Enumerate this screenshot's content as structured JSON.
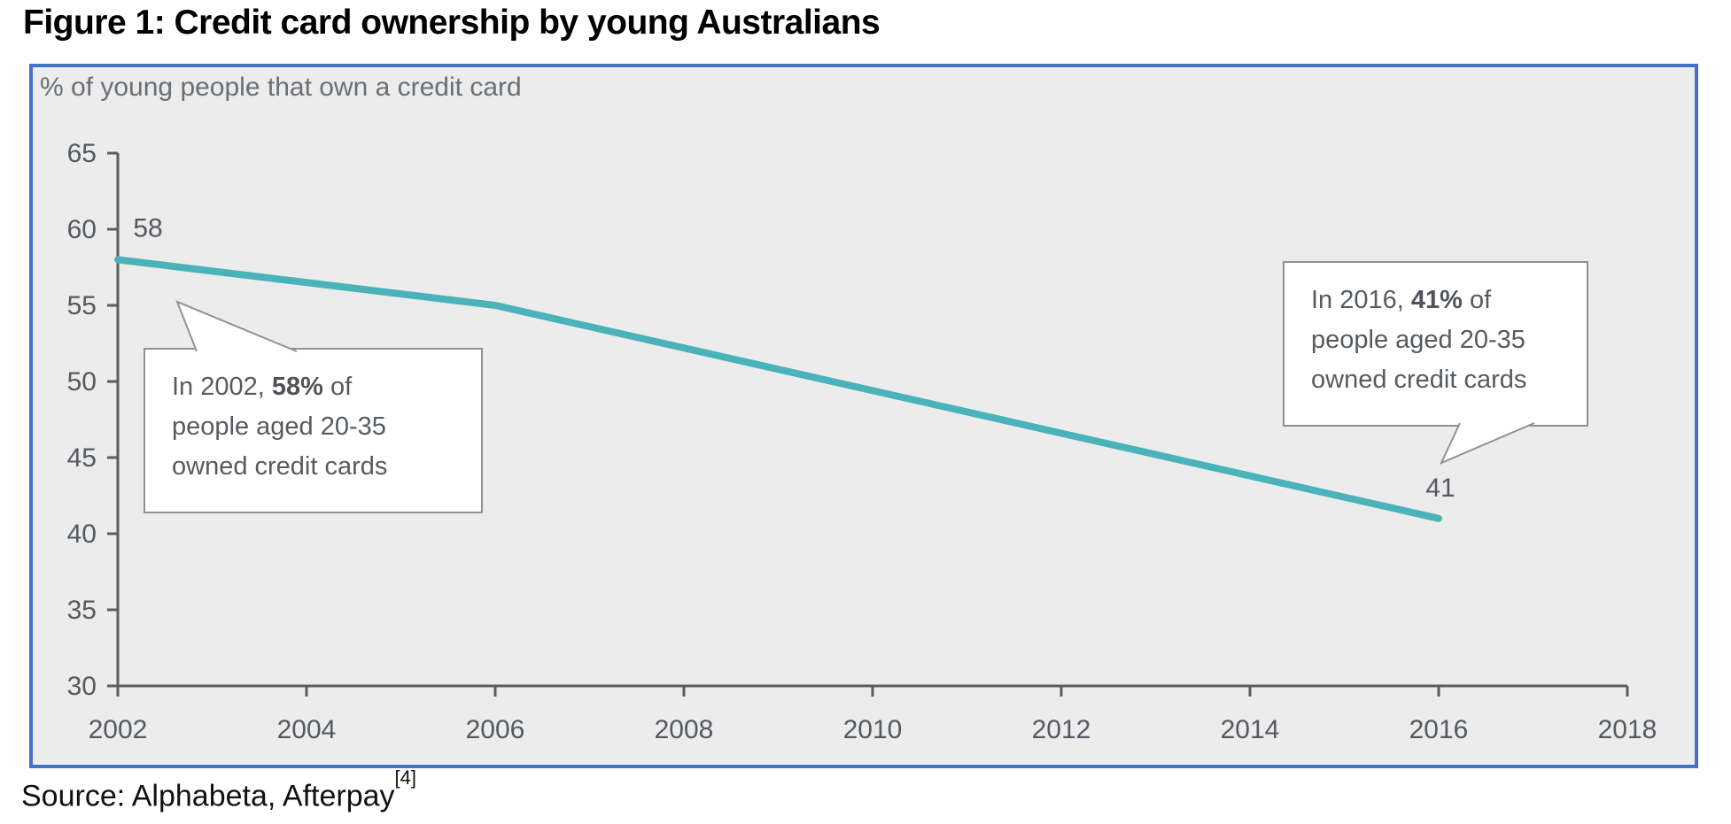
{
  "page": {
    "title": "Figure 1: Credit card ownership by young Australians",
    "source_prefix": "Source: Alphabeta, Afterpay",
    "source_ref": "[4]"
  },
  "chart_data": {
    "type": "line",
    "title": "Figure 1: Credit card ownership by young Australians",
    "subtitle": "% of young people that own a credit card",
    "x": [
      2002,
      2006,
      2016
    ],
    "values": [
      58,
      55,
      41
    ],
    "data_labels": [
      {
        "x": 2002,
        "y": 58,
        "text": "58"
      },
      {
        "x": 2016,
        "y": 41,
        "text": "41"
      }
    ],
    "xlim": [
      2002,
      2018
    ],
    "ylim": [
      30,
      65
    ],
    "x_ticks": [
      2002,
      2004,
      2006,
      2008,
      2010,
      2012,
      2014,
      2016,
      2018
    ],
    "y_ticks": [
      30,
      35,
      40,
      45,
      50,
      55,
      60,
      65
    ],
    "grid": false,
    "legend": "none",
    "line_color": "#4ab3b9",
    "axis_color": "#595d61",
    "tick_label_color": "#54595f",
    "plot_bg": "#ececec",
    "frame_color": "#4472c4"
  },
  "callouts": {
    "c2002": {
      "prefix": "In 2002, ",
      "bold": "58%",
      "suffix": " of",
      "line2": "people aged 20-35",
      "line3": "owned credit cards"
    },
    "c2016": {
      "prefix": "In 2016, ",
      "bold": "41%",
      "suffix": " of",
      "line2": "people aged 20-35",
      "line3": "owned credit cards"
    }
  }
}
